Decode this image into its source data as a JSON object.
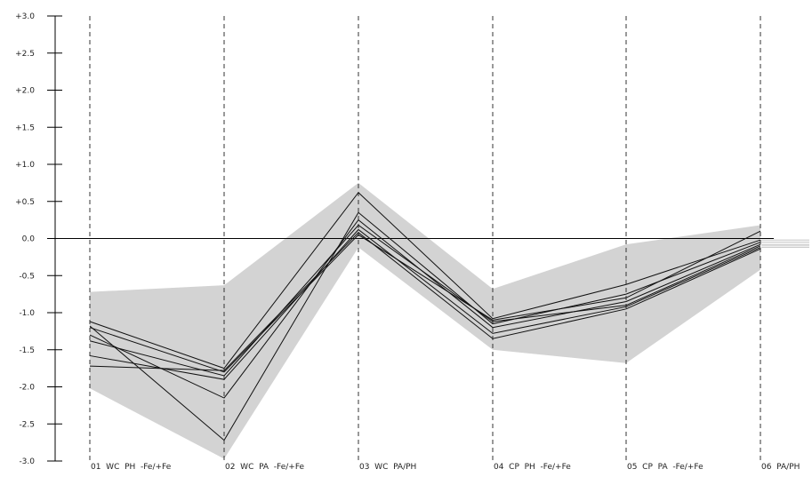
{
  "chart_data": {
    "type": "line",
    "title": "",
    "xlabel": "",
    "ylabel": "",
    "ylim": [
      -3.0,
      3.0
    ],
    "yticks": [
      3.0,
      2.5,
      2.0,
      1.5,
      1.0,
      0.5,
      0.0,
      -0.5,
      -1.0,
      -1.5,
      -2.0,
      -2.5,
      -3.0
    ],
    "ytick_labels": [
      "+3.0",
      "+2.5",
      "+2.0",
      "+1.5",
      "+1.0",
      "+0.5",
      "0.0",
      "-0.5",
      "-1.0",
      "-1.5",
      "-2.0",
      "-2.5",
      "-3.0"
    ],
    "categories": [
      "01  WC  PH  -Fe/+Fe",
      "02  WC  PA  -Fe/+Fe",
      "03  WC  PA/PH",
      "04  CP  PH  -Fe/+Fe",
      "05  CP  PA  -Fe/+Fe",
      "06  PA/PH"
    ],
    "band": {
      "upper": [
        -0.72,
        -0.63,
        0.75,
        -0.68,
        -0.08,
        0.18
      ],
      "lower": [
        -2.02,
        -2.97,
        -0.12,
        -1.5,
        -1.68,
        -0.42
      ]
    },
    "zero_line": 0.0,
    "series": [
      {
        "values": [
          -1.12,
          -1.75,
          0.62,
          -1.08,
          -0.62,
          -0.02
        ]
      },
      {
        "values": [
          -1.18,
          -2.72,
          0.35,
          -1.15,
          -0.75,
          -0.05
        ]
      },
      {
        "values": [
          -1.3,
          -2.15,
          0.25,
          -1.2,
          -0.85,
          -0.08
        ]
      },
      {
        "values": [
          -1.38,
          -1.85,
          0.18,
          -1.12,
          -0.9,
          -0.1
        ]
      },
      {
        "values": [
          -1.58,
          -1.9,
          0.12,
          -1.28,
          -0.92,
          -0.12
        ]
      },
      {
        "values": [
          -1.72,
          -1.78,
          0.08,
          -1.35,
          -0.95,
          -0.14
        ]
      },
      {
        "values": [
          -1.2,
          -1.8,
          0.05,
          -1.1,
          -0.8,
          0.1
        ]
      }
    ],
    "grid": false,
    "category_guides": "dashed-vertical"
  }
}
